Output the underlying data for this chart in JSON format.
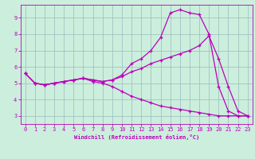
{
  "xlabel": "Windchill (Refroidissement éolien,°C)",
  "xlim": [
    -0.5,
    23.5
  ],
  "ylim": [
    2.5,
    9.8
  ],
  "xticks": [
    0,
    1,
    2,
    3,
    4,
    5,
    6,
    7,
    8,
    9,
    10,
    11,
    12,
    13,
    14,
    15,
    16,
    17,
    18,
    19,
    20,
    21,
    22,
    23
  ],
  "yticks": [
    3,
    4,
    5,
    6,
    7,
    8,
    9
  ],
  "bg_color": "#cceedd",
  "line_color": "#bb00bb",
  "grid_color": "#99bbbb",
  "line1_x": [
    0,
    1,
    2,
    3,
    4,
    5,
    6,
    7,
    8,
    9,
    10,
    11,
    12,
    13,
    14,
    15,
    16,
    17,
    18,
    19,
    20,
    21,
    22,
    23
  ],
  "line1_y": [
    5.6,
    5.0,
    4.9,
    5.0,
    5.1,
    5.2,
    5.3,
    5.2,
    5.1,
    5.2,
    5.5,
    6.2,
    6.5,
    7.0,
    7.8,
    9.3,
    9.5,
    9.3,
    9.2,
    8.0,
    4.8,
    3.3,
    3.0,
    3.0
  ],
  "line2_x": [
    0,
    1,
    2,
    3,
    4,
    5,
    6,
    7,
    8,
    9,
    10,
    11,
    12,
    13,
    14,
    15,
    16,
    17,
    18,
    19,
    20,
    21,
    22,
    23
  ],
  "line2_y": [
    5.6,
    5.0,
    4.9,
    5.0,
    5.1,
    5.2,
    5.3,
    5.2,
    5.1,
    5.2,
    5.4,
    5.7,
    5.9,
    6.2,
    6.4,
    6.6,
    6.8,
    7.0,
    7.3,
    7.9,
    6.5,
    4.8,
    3.3,
    3.0
  ],
  "line3_x": [
    0,
    1,
    2,
    3,
    4,
    5,
    6,
    7,
    8,
    9,
    10,
    11,
    12,
    13,
    14,
    15,
    16,
    17,
    18,
    19,
    20,
    21,
    22,
    23
  ],
  "line3_y": [
    5.6,
    5.0,
    4.9,
    5.0,
    5.1,
    5.2,
    5.3,
    5.1,
    5.0,
    4.8,
    4.5,
    4.2,
    4.0,
    3.8,
    3.6,
    3.5,
    3.4,
    3.3,
    3.2,
    3.1,
    3.0,
    3.0,
    3.0,
    3.0
  ]
}
